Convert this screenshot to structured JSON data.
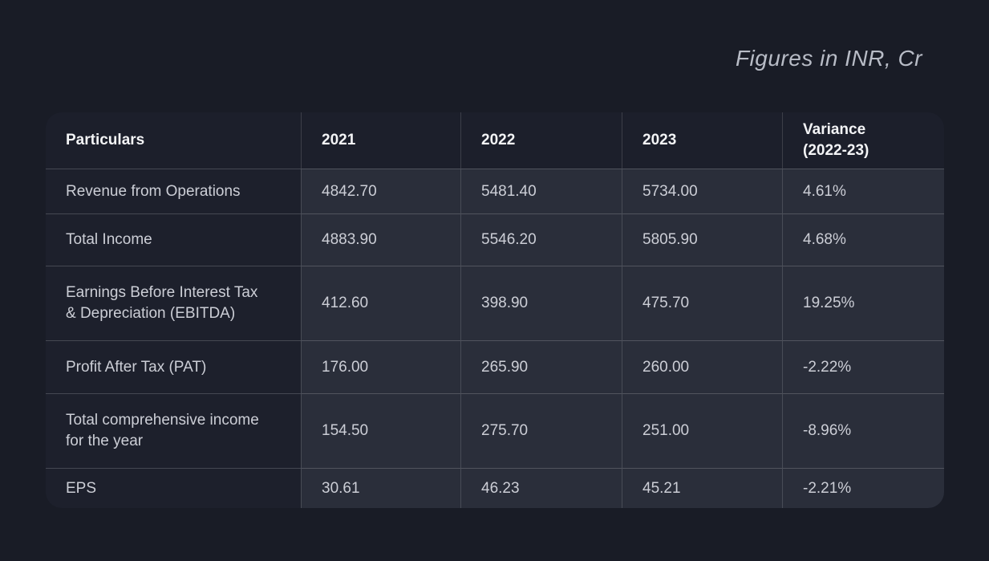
{
  "title": "Figures in INR, Cr",
  "colors": {
    "page_background": "#191c26",
    "header_and_label_background": "#1d202c",
    "data_cell_background": "#2a2e3a",
    "divider": "#474a57",
    "header_text": "#f3f4f6",
    "body_text": "#ccced6",
    "title_text": "#b8bcc6"
  },
  "chart_data": {
    "type": "table",
    "title": "Figures in INR, Cr",
    "unit": "INR, Cr",
    "columns": [
      "Particulars",
      "2021",
      "2022",
      "2023",
      "Variance\n(2022-23)"
    ],
    "rows": [
      {
        "label": "Revenue from Operations",
        "values": [
          "4842.70",
          "5481.40",
          "5734.00",
          "4.61%"
        ]
      },
      {
        "label": "Total Income",
        "values": [
          "4883.90",
          "5546.20",
          "5805.90",
          "4.68%"
        ]
      },
      {
        "label": "Earnings Before Interest  Tax\n& Depreciation (EBITDA)",
        "values": [
          "412.60",
          "398.90",
          "475.70",
          "19.25%"
        ]
      },
      {
        "label": "Profit After Tax (PAT)",
        "values": [
          "176.00",
          "265.90",
          "260.00",
          "-2.22%"
        ]
      },
      {
        "label": "Total comprehensive income\nfor the year",
        "values": [
          "154.50",
          "275.70",
          "251.00",
          "-8.96%"
        ]
      },
      {
        "label": "EPS",
        "values": [
          "30.61",
          "46.23",
          "45.21",
          "-2.21%"
        ]
      }
    ]
  }
}
